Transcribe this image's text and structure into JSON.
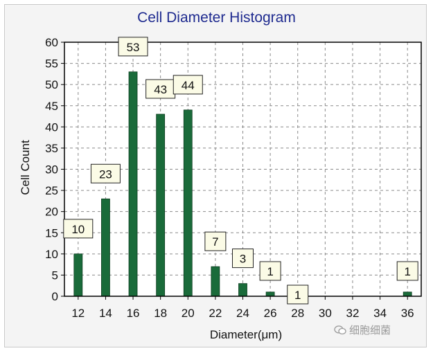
{
  "chart_data": {
    "type": "bar",
    "title": "Cell Diameter Histogram",
    "xlabel": "Diameter(μm)",
    "ylabel": "Cell Count",
    "x_ticks": [
      "12",
      "14",
      "16",
      "18",
      "20",
      "22",
      "24",
      "26",
      "28",
      "30",
      "32",
      "34",
      "36"
    ],
    "y_ticks": [
      "0",
      "5",
      "10",
      "15",
      "20",
      "25",
      "30",
      "35",
      "40",
      "45",
      "50",
      "55",
      "60"
    ],
    "xlim": [
      11,
      37
    ],
    "ylim": [
      0,
      60
    ],
    "x": [
      12,
      14,
      16,
      18,
      20,
      22,
      24,
      26,
      28,
      36
    ],
    "values": [
      10,
      23,
      53,
      43,
      44,
      7,
      3,
      1,
      1,
      1
    ],
    "data_labels": [
      "10",
      "23",
      "53",
      "43",
      "44",
      "7",
      "3",
      "1",
      "1",
      "1"
    ],
    "grid": true,
    "bar_color": "#1a6b3a"
  },
  "watermark": {
    "text": "细胞细菌",
    "icon": "wechat-icon"
  }
}
